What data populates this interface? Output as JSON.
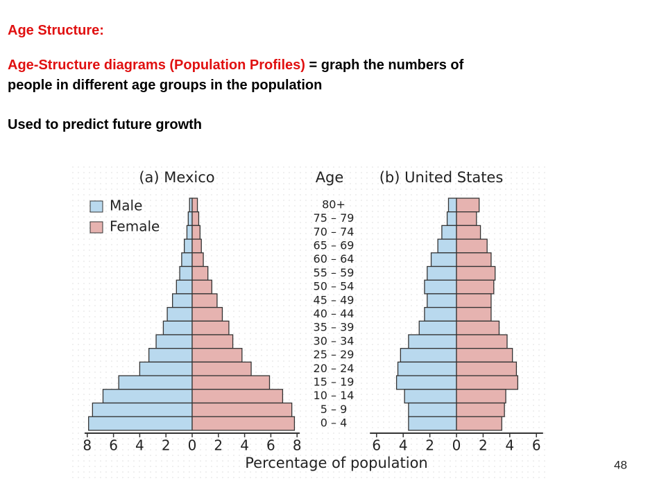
{
  "slide": {
    "heading": "Age Structure:",
    "definition_term": "Age-Structure diagrams (Population Profiles)",
    "definition_text": " = graph the numbers of",
    "definition_text_2": "people in different age groups in the population",
    "note": "Used to predict future growth",
    "page_number": "48"
  },
  "chart_data": [
    {
      "type": "pyramid",
      "title": "(a) Mexico",
      "category_title": "Age",
      "xlabel": "Percentage of population",
      "categories": [
        "80+",
        "75 – 79",
        "70 – 74",
        "65 – 69",
        "60 – 64",
        "55 – 59",
        "50 – 54",
        "45 – 49",
        "40 – 44",
        "35 – 39",
        "30 – 34",
        "25 – 29",
        "20 – 24",
        "15 – 19",
        "10 – 14",
        "5 – 9",
        "0 – 4"
      ],
      "series": [
        {
          "name": "Male",
          "color": "#b9d9ee",
          "side": "left",
          "values": [
            0.2,
            0.3,
            0.4,
            0.6,
            0.8,
            0.95,
            1.2,
            1.5,
            1.9,
            2.2,
            2.75,
            3.3,
            4.0,
            5.6,
            6.8,
            7.6,
            7.9
          ]
        },
        {
          "name": "Female",
          "color": "#e6b3b0",
          "side": "right",
          "values": [
            0.4,
            0.5,
            0.6,
            0.7,
            0.85,
            1.2,
            1.5,
            1.9,
            2.3,
            2.8,
            3.1,
            3.8,
            4.5,
            5.9,
            6.9,
            7.6,
            7.8
          ]
        }
      ],
      "xlim": [
        -8.2,
        8.2
      ],
      "xticks": [
        {
          "value": -8,
          "label": "8"
        },
        {
          "value": -6,
          "label": "6"
        },
        {
          "value": -4,
          "label": "4"
        },
        {
          "value": -2,
          "label": "2"
        },
        0,
        2,
        4,
        6,
        8
      ]
    },
    {
      "type": "pyramid",
      "title": "(b) United States",
      "series": [
        {
          "color": "#b9d9ee",
          "side": "left",
          "values": [
            0.6,
            0.7,
            1.1,
            1.4,
            1.9,
            2.2,
            2.4,
            2.2,
            2.4,
            2.8,
            3.6,
            4.2,
            4.4,
            4.5,
            3.9,
            3.6,
            3.6
          ]
        },
        {
          "color": "#e6b3b0",
          "side": "right",
          "values": [
            1.7,
            1.5,
            1.8,
            2.3,
            2.6,
            2.9,
            2.8,
            2.6,
            2.6,
            3.2,
            3.8,
            4.2,
            4.5,
            4.6,
            3.7,
            3.6,
            3.4
          ]
        }
      ],
      "xlim": [
        -6.5,
        6.5
      ],
      "xticks": [
        {
          "value": -6,
          "label": "6"
        },
        {
          "value": -4,
          "label": "4"
        },
        {
          "value": -2,
          "label": "2"
        },
        0,
        2,
        4,
        6
      ]
    }
  ]
}
